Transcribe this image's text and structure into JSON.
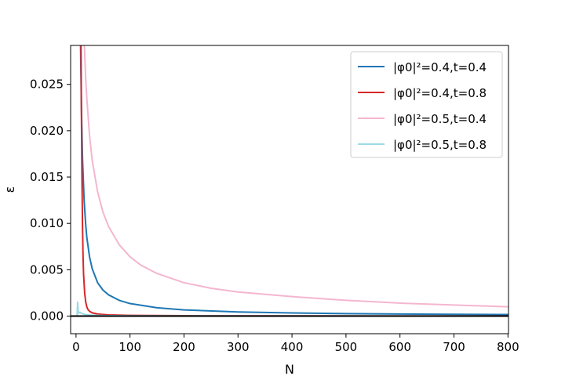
{
  "chart_data": {
    "type": "line",
    "xlabel": "N",
    "ylabel": "ε",
    "xlim": [
      -10,
      801
    ],
    "ylim": [
      -0.0019,
      0.0292
    ],
    "x_ticks": [
      {
        "value": 0,
        "label": "0"
      },
      {
        "value": 100,
        "label": "100"
      },
      {
        "value": 200,
        "label": "200"
      },
      {
        "value": 300,
        "label": "300"
      },
      {
        "value": 400,
        "label": "400"
      },
      {
        "value": 500,
        "label": "500"
      },
      {
        "value": 600,
        "label": "600"
      },
      {
        "value": 700,
        "label": "700"
      },
      {
        "value": 800,
        "label": "800"
      }
    ],
    "y_ticks": [
      {
        "value": 0.0,
        "label": "0.000"
      },
      {
        "value": 0.005,
        "label": "0.005"
      },
      {
        "value": 0.01,
        "label": "0.010"
      },
      {
        "value": 0.015,
        "label": "0.015"
      },
      {
        "value": 0.02,
        "label": "0.020"
      },
      {
        "value": 0.025,
        "label": "0.025"
      }
    ],
    "grid": false,
    "legend_position": "top-right",
    "reference_line": {
      "y": 0,
      "color": "#000000"
    },
    "series": [
      {
        "name": "|φ0|²=0.4,t=0.4",
        "color": "#1f77b4",
        "x": [
          8,
          10,
          12,
          15,
          18,
          20,
          25,
          30,
          40,
          50,
          60,
          80,
          100,
          150,
          200,
          300,
          400,
          500,
          600,
          700,
          800
        ],
        "y": [
          0.031,
          0.0225,
          0.017,
          0.0125,
          0.0098,
          0.0085,
          0.0064,
          0.0051,
          0.0036,
          0.0028,
          0.0023,
          0.0017,
          0.00135,
          0.0009,
          0.00067,
          0.00045,
          0.00034,
          0.00027,
          0.00022,
          0.00019,
          0.00017
        ]
      },
      {
        "name": "|φ0|²=0.4,t=0.8",
        "color": "#d62728",
        "x": [
          9,
          10,
          11,
          12,
          13,
          14,
          16,
          18,
          20,
          22,
          25,
          30,
          40,
          60,
          100,
          200,
          400,
          800
        ],
        "y": [
          0.031,
          0.022,
          0.015,
          0.0098,
          0.0065,
          0.0045,
          0.0025,
          0.0015,
          0.001,
          0.00072,
          0.00052,
          0.00035,
          0.00022,
          0.00013,
          8e-05,
          4e-05,
          2e-05,
          1e-05
        ]
      },
      {
        "name": "|φ0|²=0.5,t=0.4",
        "color": "#f4b6cf",
        "x": [
          15,
          18,
          20,
          25,
          30,
          40,
          50,
          60,
          80,
          100,
          120,
          150,
          200,
          250,
          300,
          400,
          500,
          600,
          700,
          800
        ],
        "y": [
          0.0298,
          0.0255,
          0.0235,
          0.0195,
          0.0168,
          0.0134,
          0.0112,
          0.0097,
          0.0077,
          0.0064,
          0.0055,
          0.0046,
          0.0036,
          0.003,
          0.0026,
          0.0021,
          0.0017,
          0.0014,
          0.0012,
          0.001
        ]
      },
      {
        "name": "|φ0|²=0.5,t=0.8",
        "color": "#9edae5",
        "x": [
          2,
          3,
          4,
          5,
          6,
          8,
          10,
          15,
          20,
          30,
          50,
          100,
          200,
          400,
          800
        ],
        "y": [
          0.0001,
          0.0015,
          0.0006,
          0.0003,
          0.0004,
          0.0004,
          0.0003,
          0.0002,
          0.00015,
          0.0001,
          5e-05,
          3e-05,
          2e-05,
          1e-05,
          5e-06
        ]
      }
    ]
  }
}
